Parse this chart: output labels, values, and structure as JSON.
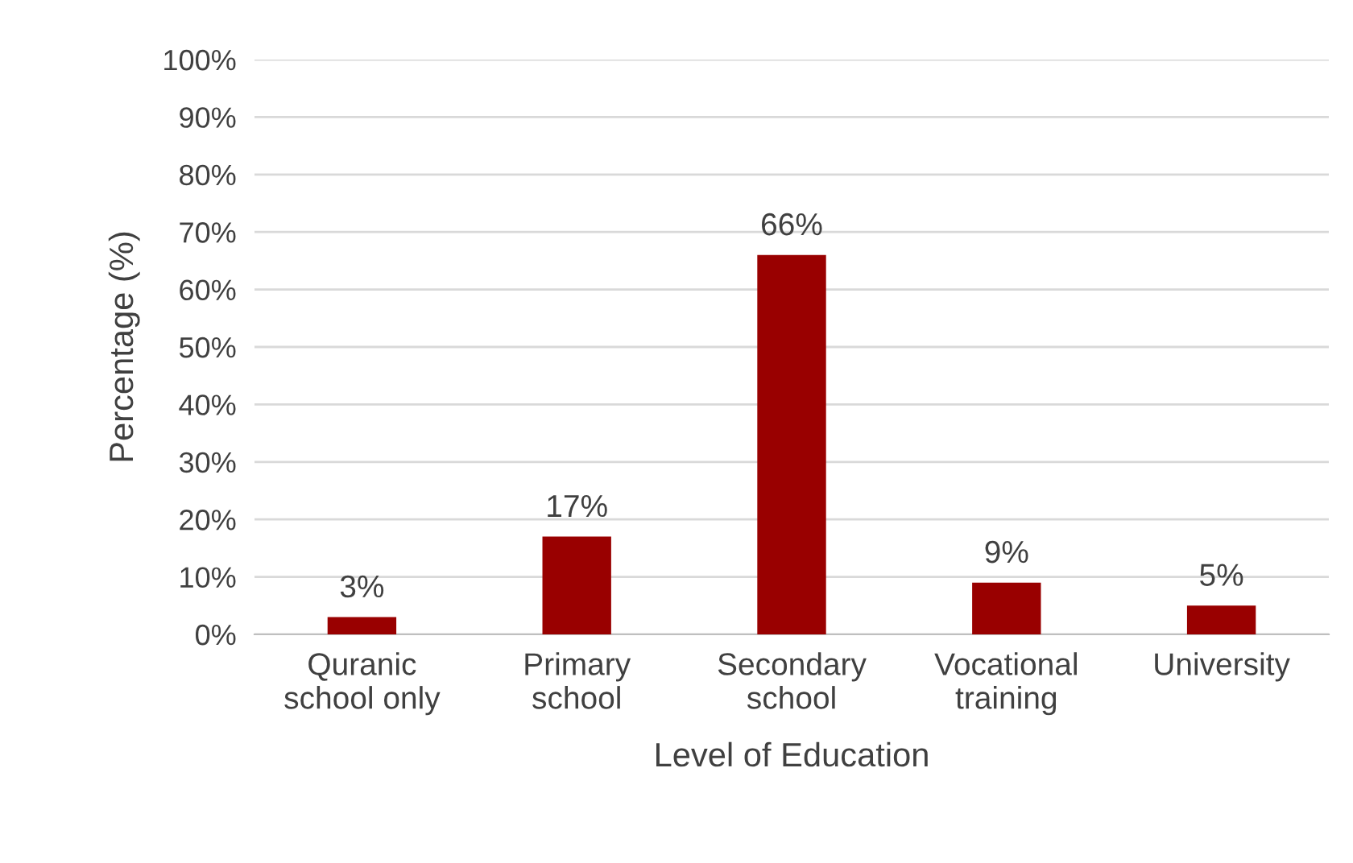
{
  "chart_data": {
    "type": "bar",
    "xlabel": "Level of Education",
    "ylabel": "Percentage (%)",
    "categories": [
      "Quranic\nschool only",
      "Primary\nschool",
      "Secondary\nschool",
      "Vocational\ntraining",
      "University"
    ],
    "values": [
      3,
      17,
      66,
      9,
      5
    ],
    "value_labels": [
      "3%",
      "17%",
      "66%",
      "9%",
      "5%"
    ],
    "color": "#990000",
    "ylim": [
      0,
      100
    ],
    "yticks": [
      {
        "value": 0,
        "label": "0%"
      },
      {
        "value": 10,
        "label": "10%"
      },
      {
        "value": 20,
        "label": "20%"
      },
      {
        "value": 30,
        "label": "30%"
      },
      {
        "value": 40,
        "label": "40%"
      },
      {
        "value": 50,
        "label": "50%"
      },
      {
        "value": 60,
        "label": "60%"
      },
      {
        "value": 70,
        "label": "70%"
      },
      {
        "value": 80,
        "label": "80%"
      },
      {
        "value": 90,
        "label": "90%"
      },
      {
        "value": 100,
        "label": "100%"
      }
    ],
    "grid": "y",
    "legend": false
  }
}
